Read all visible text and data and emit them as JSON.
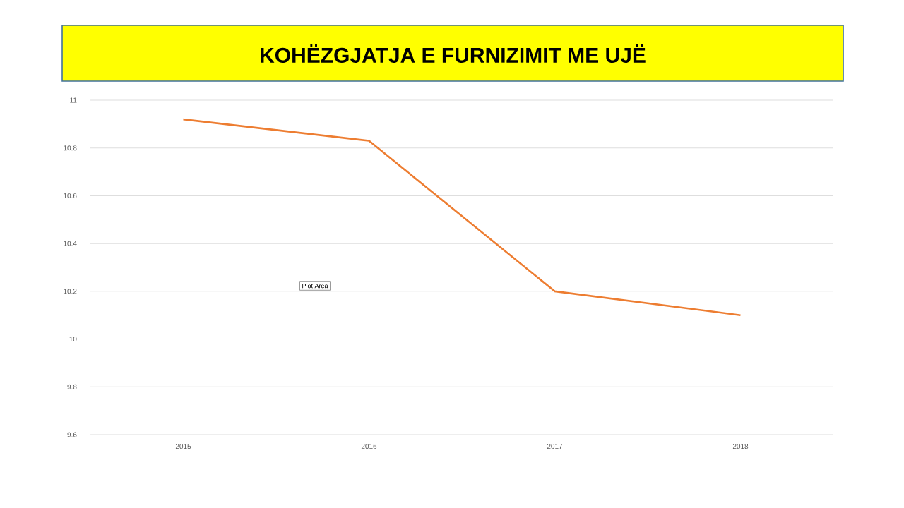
{
  "chart_data": {
    "type": "line",
    "title": "KOHËZGJATJA E FURNIZIMIT ME UJË",
    "categories": [
      "2015",
      "2016",
      "2017",
      "2018"
    ],
    "series": [
      {
        "color": "#ed7d31",
        "values": [
          10.92,
          10.83,
          10.2,
          10.1
        ]
      }
    ],
    "ylim": [
      9.6,
      11
    ],
    "yticks": [
      9.6,
      9.8,
      10,
      10.2,
      10.4,
      10.6,
      10.8,
      11
    ],
    "grid": "y",
    "annotations": [
      "Plot Area"
    ]
  }
}
